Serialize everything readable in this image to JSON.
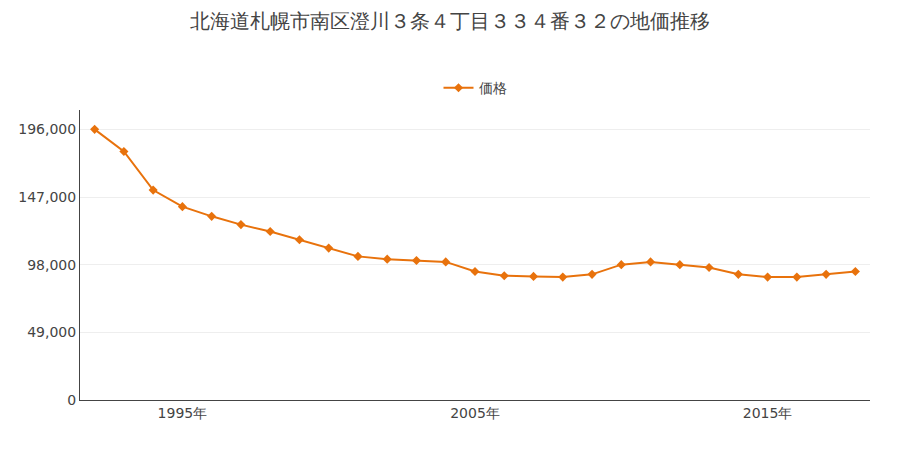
{
  "chart_data": {
    "type": "line",
    "title": "北海道札幌市南区澄川３条４丁目３３４番３２の地価推移",
    "x": [
      1992,
      1993,
      1994,
      1995,
      1996,
      1997,
      1998,
      1999,
      2000,
      2001,
      2002,
      2003,
      2004,
      2005,
      2006,
      2007,
      2008,
      2009,
      2010,
      2011,
      2012,
      2013,
      2014,
      2015,
      2016,
      2017,
      2018
    ],
    "series": [
      {
        "name": "価格",
        "color": "#E8720C",
        "marker": "diamond",
        "values": [
          196000,
          180000,
          152000,
          140000,
          133000,
          127000,
          122000,
          116000,
          110000,
          104000,
          102000,
          101000,
          100000,
          93000,
          90000,
          89500,
          89000,
          91000,
          98000,
          100000,
          98000,
          96000,
          91000,
          89000,
          89000,
          91000,
          93000
        ]
      }
    ],
    "xlim": [
      1991.5,
      2018.5
    ],
    "xticks": [
      {
        "value": 1995,
        "label": "1995年"
      },
      {
        "value": 2005,
        "label": "2005年"
      },
      {
        "value": 2015,
        "label": "2015年"
      }
    ],
    "ylim": [
      0,
      210000
    ],
    "yticks": [
      0,
      {
        "value": 49000,
        "label": "49,000"
      },
      {
        "value": 98000,
        "label": "98,000"
      },
      {
        "value": 147000,
        "label": "147,000"
      },
      {
        "value": 196000,
        "label": "196,000"
      }
    ],
    "grid": true,
    "legend": "top"
  }
}
